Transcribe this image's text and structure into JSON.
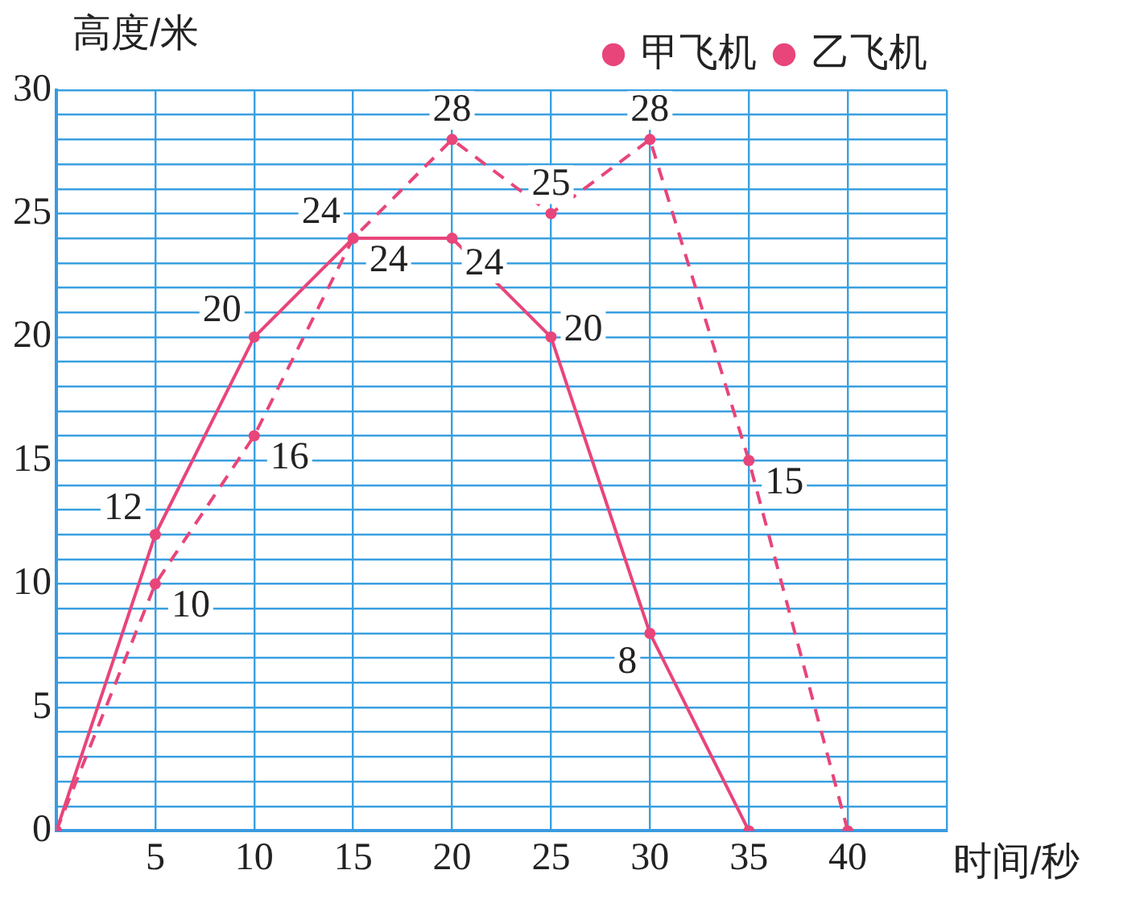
{
  "chart_data": {
    "type": "line",
    "xlabel": "时间/秒",
    "ylabel": "高度/米",
    "xlim": [
      0,
      45
    ],
    "xticks": [
      {
        "value": 0,
        "label": null
      },
      5,
      10,
      15,
      20,
      25,
      30,
      35,
      40,
      {
        "value": 45,
        "label": null
      }
    ],
    "ylim": [
      0,
      30
    ],
    "yticks": [
      0,
      {
        "value": 1,
        "label": null
      },
      {
        "value": 2,
        "label": null
      },
      {
        "value": 3,
        "label": null
      },
      {
        "value": 4,
        "label": null
      },
      5,
      {
        "value": 6,
        "label": null
      },
      {
        "value": 7,
        "label": null
      },
      {
        "value": 8,
        "label": null
      },
      {
        "value": 9,
        "label": null
      },
      10,
      {
        "value": 11,
        "label": null
      },
      {
        "value": 12,
        "label": null
      },
      {
        "value": 13,
        "label": null
      },
      {
        "value": 14,
        "label": null
      },
      15,
      {
        "value": 16,
        "label": null
      },
      {
        "value": 17,
        "label": null
      },
      {
        "value": 18,
        "label": null
      },
      {
        "value": 19,
        "label": null
      },
      20,
      {
        "value": 21,
        "label": null
      },
      {
        "value": 22,
        "label": null
      },
      {
        "value": 23,
        "label": null
      },
      {
        "value": 24,
        "label": null
      },
      25,
      {
        "value": 26,
        "label": null
      },
      {
        "value": 27,
        "label": null
      },
      {
        "value": 28,
        "label": null
      },
      {
        "value": 29,
        "label": null
      },
      30
    ],
    "grid": true,
    "legend": "top right",
    "marker": "circle",
    "series": [
      {
        "name": "甲飞机",
        "color": "#e8457a",
        "line_style": "dashed",
        "x": [
          0,
          5,
          10,
          15,
          20,
          25,
          30,
          35,
          40
        ],
        "values": [
          0,
          10,
          16,
          24,
          28,
          25,
          28,
          15,
          0
        ],
        "value_labels": [
          null,
          "10",
          "16",
          "24",
          "28",
          "25",
          "28",
          "15",
          null
        ]
      },
      {
        "name": "乙飞机",
        "color": "#e8457a",
        "line_style": "solid",
        "x": [
          0,
          5,
          10,
          15,
          20,
          25,
          30,
          35
        ],
        "values": [
          0,
          12,
          20,
          24,
          24,
          20,
          8,
          0
        ],
        "value_labels": [
          null,
          "12",
          "20",
          "24",
          "24",
          "20",
          "8",
          null
        ]
      }
    ]
  }
}
